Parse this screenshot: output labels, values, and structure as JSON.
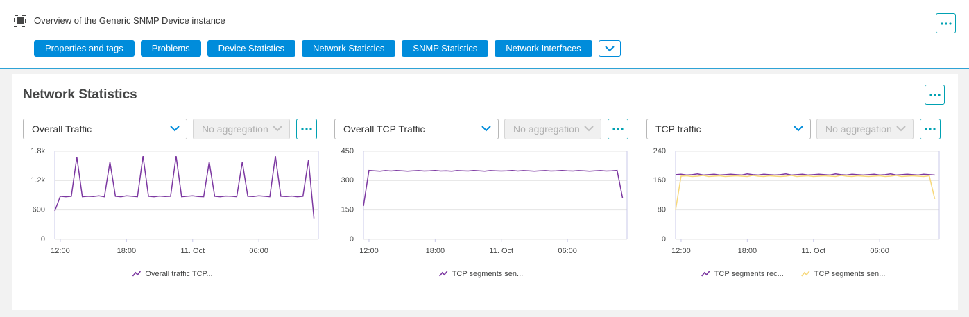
{
  "header": {
    "title": "Overview of the Generic SNMP Device instance",
    "tabs": [
      "Properties and tags",
      "Problems",
      "Device Statistics",
      "Network Statistics",
      "SNMP Statistics",
      "Network Interfaces"
    ]
  },
  "section": {
    "title": "Network Statistics"
  },
  "chart_data": [
    {
      "type": "line",
      "selector": "Overall Traffic",
      "aggregation": "No aggregation",
      "x": [
        11.5,
        12,
        12.5,
        13,
        13.5,
        14,
        14.5,
        15,
        15.5,
        16,
        16.5,
        17,
        17.5,
        18,
        18.5,
        19,
        19.5,
        20,
        20.5,
        21,
        21.5,
        22,
        22.5,
        23,
        23.5,
        24,
        24.5,
        25,
        25.5,
        26,
        26.5,
        27,
        27.5,
        28,
        28.5,
        29,
        29.5,
        30,
        30.5,
        31,
        31.5,
        32,
        32.5,
        33,
        33.5,
        34,
        34.5,
        35
      ],
      "xlim": [
        11.5,
        35.4
      ],
      "xticks": [
        {
          "value": 12,
          "label": "12:00"
        },
        {
          "value": 18,
          "label": "18:00"
        },
        {
          "value": 24,
          "label": "11. Oct"
        },
        {
          "value": 30,
          "label": "06:00"
        }
      ],
      "ylim": [
        0,
        1800
      ],
      "yticks": [
        0,
        600,
        {
          "value": 1200,
          "label": "1.2k"
        },
        {
          "value": 1800,
          "label": "1.8k"
        }
      ],
      "grid": true,
      "series": [
        {
          "name": "Overall traffic TCP...",
          "color": "#7c38a1",
          "values": [
            580,
            880,
            870,
            880,
            1680,
            870,
            880,
            875,
            890,
            870,
            1580,
            880,
            870,
            890,
            880,
            870,
            1700,
            880,
            870,
            885,
            875,
            880,
            1700,
            870,
            880,
            890,
            875,
            870,
            1580,
            880,
            870,
            885,
            880,
            870,
            1580,
            880,
            875,
            890,
            880,
            870,
            1700,
            880,
            875,
            885,
            870,
            880,
            1620,
            430
          ]
        }
      ]
    },
    {
      "type": "line",
      "selector": "Overall TCP Traffic",
      "aggregation": "No aggregation",
      "x": [
        11.5,
        12,
        12.5,
        13,
        13.5,
        14,
        14.5,
        15,
        15.5,
        16,
        16.5,
        17,
        17.5,
        18,
        18.5,
        19,
        19.5,
        20,
        20.5,
        21,
        21.5,
        22,
        22.5,
        23,
        23.5,
        24,
        24.5,
        25,
        25.5,
        26,
        26.5,
        27,
        27.5,
        28,
        28.5,
        29,
        29.5,
        30,
        30.5,
        31,
        31.5,
        32,
        32.5,
        33,
        33.5,
        34,
        34.5,
        35
      ],
      "xlim": [
        11.5,
        35.4
      ],
      "xticks": [
        {
          "value": 12,
          "label": "12:00"
        },
        {
          "value": 18,
          "label": "18:00"
        },
        {
          "value": 24,
          "label": "11. Oct"
        },
        {
          "value": 30,
          "label": "06:00"
        }
      ],
      "ylim": [
        0,
        450
      ],
      "yticks": [
        0,
        150,
        300,
        450
      ],
      "grid": true,
      "series": [
        {
          "name": "TCP segments sen...",
          "color": "#7c38a1",
          "values": [
            170,
            352,
            350,
            348,
            351,
            349,
            352,
            350,
            348,
            350,
            351,
            349,
            350,
            352,
            349,
            350,
            348,
            351,
            350,
            349,
            352,
            350,
            348,
            351,
            350,
            349,
            350,
            352,
            349,
            351,
            350,
            348,
            350,
            351,
            349,
            350,
            352,
            350,
            349,
            351,
            350,
            348,
            350,
            351,
            349,
            350,
            352,
            210
          ]
        }
      ]
    },
    {
      "type": "line",
      "selector": "TCP traffic",
      "aggregation": "No aggregation",
      "x": [
        11.5,
        12,
        12.5,
        13,
        13.5,
        14,
        14.5,
        15,
        15.5,
        16,
        16.5,
        17,
        17.5,
        18,
        18.5,
        19,
        19.5,
        20,
        20.5,
        21,
        21.5,
        22,
        22.5,
        23,
        23.5,
        24,
        24.5,
        25,
        25.5,
        26,
        26.5,
        27,
        27.5,
        28,
        28.5,
        29,
        29.5,
        30,
        30.5,
        31,
        31.5,
        32,
        32.5,
        33,
        33.5,
        34,
        34.5,
        35
      ],
      "xlim": [
        11.5,
        35.4
      ],
      "xticks": [
        {
          "value": 12,
          "label": "12:00"
        },
        {
          "value": 18,
          "label": "18:00"
        },
        {
          "value": 24,
          "label": "11. Oct"
        },
        {
          "value": 30,
          "label": "06:00"
        }
      ],
      "ylim": [
        0,
        240
      ],
      "yticks": [
        0,
        80,
        160,
        240
      ],
      "grid": true,
      "series": [
        {
          "name": "TCP segments rec...",
          "color": "#7c38a1",
          "values": [
            176,
            177,
            175,
            176,
            178,
            175,
            176,
            177,
            175,
            176,
            177,
            176,
            175,
            178,
            176,
            175,
            177,
            176,
            175,
            176,
            178,
            175,
            176,
            177,
            175,
            176,
            177,
            176,
            175,
            178,
            176,
            175,
            177,
            176,
            175,
            176,
            177,
            175,
            176,
            178,
            175,
            176,
            177,
            176,
            175,
            177,
            176,
            175
          ]
        },
        {
          "name": "TCP segments sen...",
          "color": "#f7d87a",
          "values": [
            80,
            172,
            173,
            171,
            172,
            174,
            171,
            172,
            173,
            171,
            172,
            173,
            172,
            171,
            174,
            172,
            171,
            173,
            172,
            171,
            172,
            174,
            171,
            172,
            173,
            171,
            172,
            173,
            172,
            171,
            174,
            172,
            171,
            173,
            172,
            171,
            172,
            173,
            171,
            172,
            174,
            171,
            172,
            173,
            172,
            171,
            173,
            110
          ]
        }
      ]
    }
  ]
}
